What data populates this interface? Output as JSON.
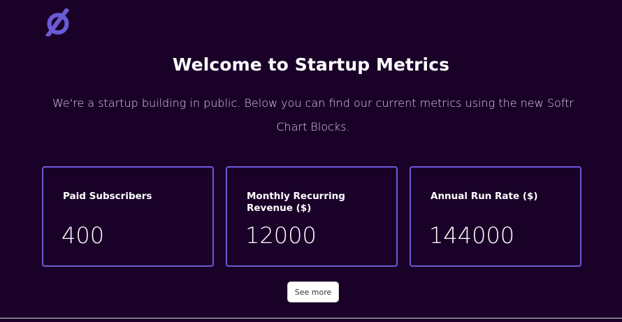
{
  "brand": {
    "logo_icon": "slashed-circle-logo",
    "accent_color": "#6a5bd6",
    "background_color": "#1a0128"
  },
  "hero": {
    "title": "Welcome to Startup Metrics",
    "subtitle": "We're a startup building in public. Below you can find our current metrics using the new Softr Chart Blocks."
  },
  "metrics": [
    {
      "label": "Paid Subscribers",
      "value": "400"
    },
    {
      "label": "Monthly Recurring Revenue ($)",
      "value": "12000"
    },
    {
      "label": "Annual Run Rate ($)",
      "value": "144000"
    }
  ],
  "actions": {
    "see_more_label": "See more"
  }
}
